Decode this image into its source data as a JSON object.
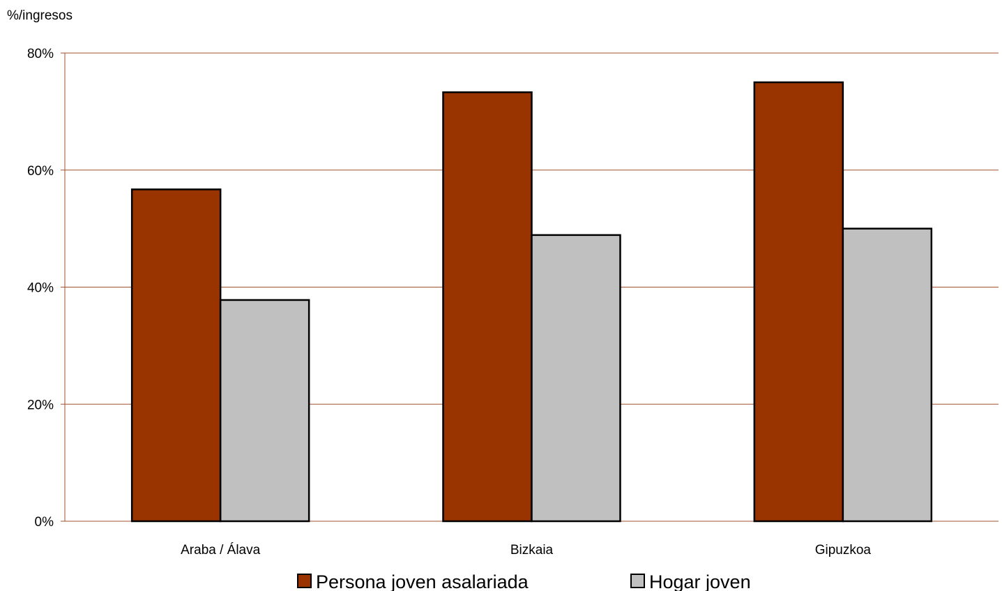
{
  "chart_data": {
    "type": "bar",
    "title": "",
    "ylabel": "%/ingresos",
    "xlabel": "",
    "ylim": [
      0,
      80
    ],
    "yticks": [
      "0%",
      "20%",
      "40%",
      "60%",
      "80%"
    ],
    "ytick_values": [
      0,
      20,
      40,
      60,
      80
    ],
    "grid": true,
    "legend_position": "bottom",
    "categories": [
      "Araba / Álava",
      "Bizkaia",
      "Gipuzkoa"
    ],
    "series": [
      {
        "name": "Persona joven asalariada",
        "color": "#993300",
        "values": [
          56.7,
          73.3,
          75.0
        ]
      },
      {
        "name": "Hogar joven",
        "color": "#c0c0c0",
        "values": [
          37.8,
          48.9,
          50.0
        ]
      }
    ],
    "colors": {
      "grid": "#a0522d",
      "bar_border": "#000000"
    }
  }
}
